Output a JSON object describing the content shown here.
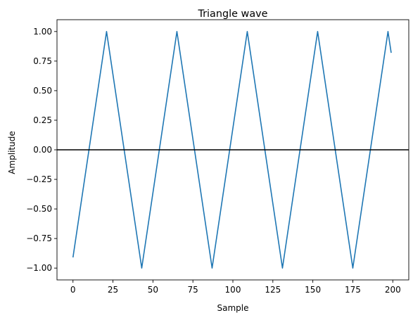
{
  "chart_data": {
    "type": "line",
    "title": "Triangle wave",
    "xlabel": "Sample",
    "ylabel": "Amplitude",
    "xlim": [
      -10,
      210
    ],
    "ylim": [
      -1.1,
      1.1
    ],
    "xticks": [
      0,
      25,
      50,
      75,
      100,
      125,
      150,
      175,
      200
    ],
    "xtick_labels": [
      "0",
      "25",
      "50",
      "75",
      "100",
      "125",
      "150",
      "175",
      "200"
    ],
    "yticks": [
      -1.0,
      -0.75,
      -0.5,
      -0.25,
      0.0,
      0.25,
      0.5,
      0.75,
      1.0
    ],
    "ytick_labels": [
      "−1.00",
      "−0.75",
      "−0.50",
      "−0.25",
      "0.00",
      "0.25",
      "0.50",
      "0.75",
      "1.00"
    ],
    "grid": false,
    "horizontal_line": {
      "y": 0,
      "color": "#000000"
    },
    "series": [
      {
        "color": "#1f77b4",
        "points": [
          {
            "x": 0,
            "y": -0.91
          },
          {
            "x": 21,
            "y": 1.0
          },
          {
            "x": 43,
            "y": -1.0
          },
          {
            "x": 65,
            "y": 1.0
          },
          {
            "x": 87,
            "y": -1.0
          },
          {
            "x": 109,
            "y": 1.0
          },
          {
            "x": 131,
            "y": -1.0
          },
          {
            "x": 153,
            "y": 1.0
          },
          {
            "x": 175,
            "y": -1.0
          },
          {
            "x": 197,
            "y": 1.0
          },
          {
            "x": 199,
            "y": 0.82
          }
        ]
      }
    ]
  }
}
